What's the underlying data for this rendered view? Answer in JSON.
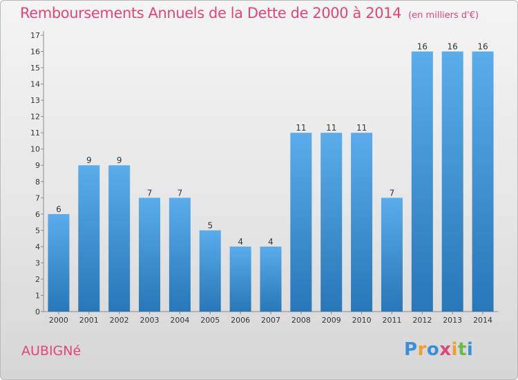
{
  "header": {
    "title": "Remboursements Annuels de la Dette de 2000 à 2014",
    "unit": "(en milliers d'€)"
  },
  "footer": {
    "commune": "AUBIGNé",
    "brand_letters": [
      {
        "ch": "P",
        "color": "#3a8fd8"
      },
      {
        "ch": "r",
        "color": "#f0a02a"
      },
      {
        "ch": "o",
        "color": "#3a8fd8"
      },
      {
        "ch": "x",
        "color": "#e0457b"
      },
      {
        "ch": "i",
        "color": "#f0a02a"
      },
      {
        "ch": "t",
        "color": "#6aba45"
      },
      {
        "ch": "i",
        "color": "#3a8fd8"
      }
    ]
  },
  "chart_data": {
    "type": "bar",
    "categories": [
      "2000",
      "2001",
      "2002",
      "2003",
      "2004",
      "2005",
      "2006",
      "2007",
      "2008",
      "2009",
      "2010",
      "2011",
      "2012",
      "2013",
      "2014"
    ],
    "values": [
      6,
      9,
      9,
      7,
      7,
      5,
      4,
      4,
      11,
      11,
      11,
      7,
      16,
      16,
      16
    ],
    "ylim": [
      0,
      17
    ],
    "yticks": [
      0,
      1,
      2,
      3,
      4,
      5,
      6,
      7,
      8,
      9,
      10,
      11,
      12,
      13,
      14,
      15,
      16,
      17
    ],
    "grid": false,
    "bar_color_top": "#5aacea",
    "bar_color_bottom": "#2877b8"
  }
}
